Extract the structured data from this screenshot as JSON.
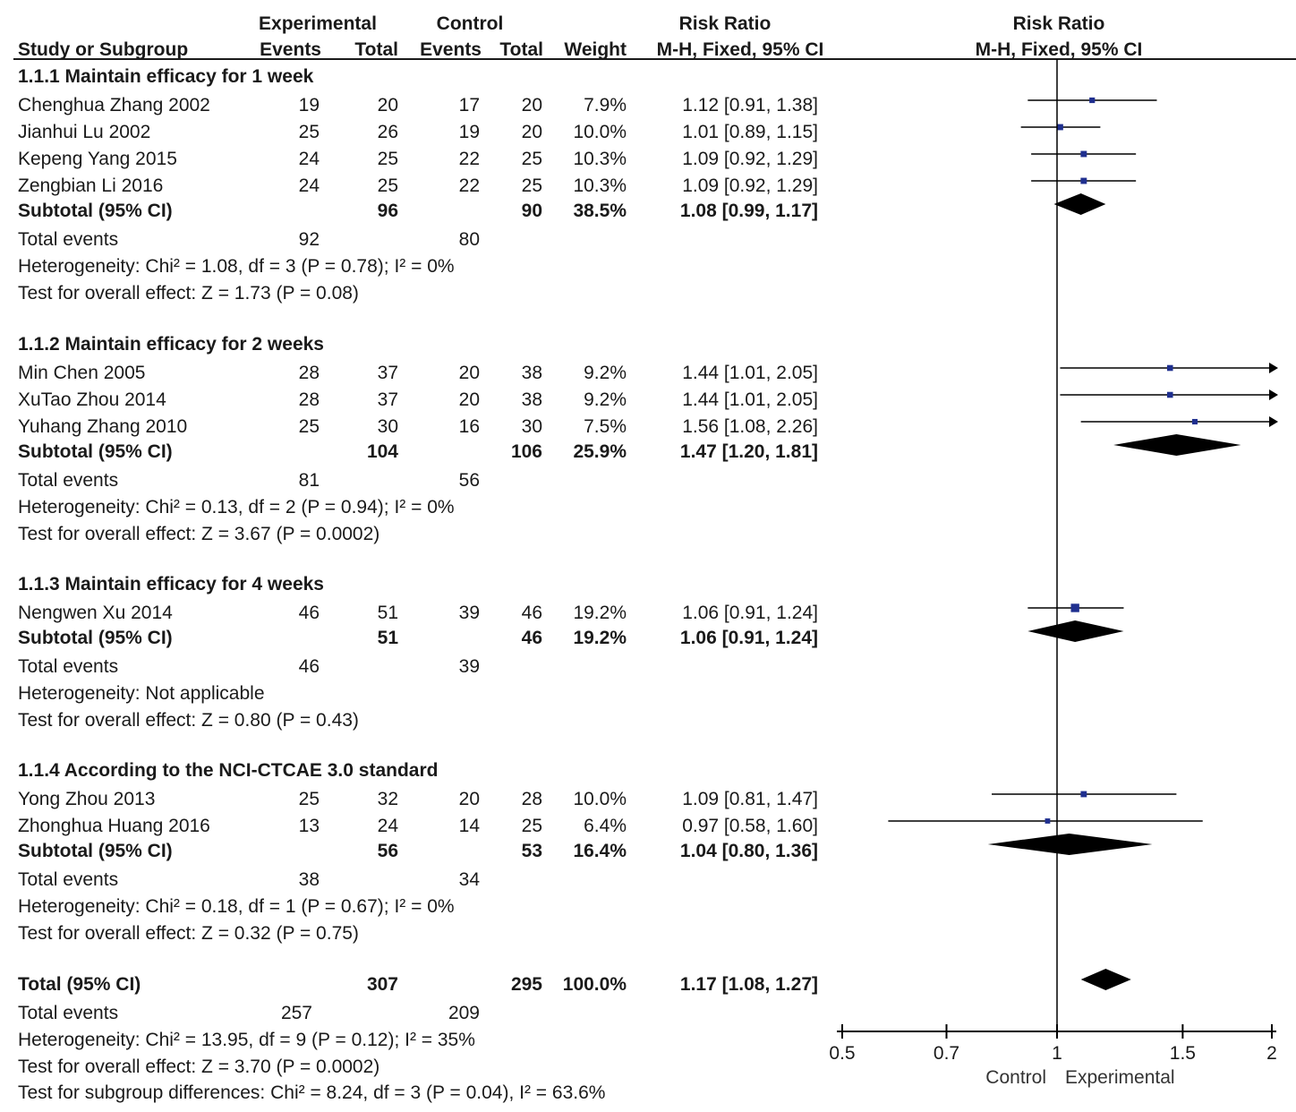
{
  "header": {
    "experimental": "Experimental",
    "control": "Control",
    "risk_ratio": "Risk Ratio",
    "study": "Study or Subgroup",
    "events": "Events",
    "total": "Total",
    "weight": "Weight",
    "method": "M-H, Fixed, 95% CI",
    "plot_title": "Risk Ratio",
    "plot_method": "M-H, Fixed, 95% CI"
  },
  "chart_data": {
    "type": "forest",
    "x_scale": "log",
    "xlim": [
      0.5,
      2
    ],
    "reference_line": 1,
    "ticks": [
      0.5,
      0.7,
      1,
      1.5,
      2
    ],
    "tick_labels": [
      "0.5",
      "0.7",
      "1",
      "1.5",
      "2"
    ],
    "favours_left": "Control",
    "favours_right": "Experimental",
    "colors": {
      "marker": "#1f2f8f",
      "diamond": "#000000",
      "text": "#1a1a1a"
    },
    "groups": [
      {
        "title": "1.1.1 Maintain efficacy for 1 week",
        "studies": [
          {
            "name": "Chenghua Zhang 2002",
            "exp_events": "19",
            "exp_total": "20",
            "ctrl_events": "17",
            "ctrl_total": "20",
            "weight": "7.9%",
            "rr_text": "1.12 [0.91, 1.38]",
            "rr": 1.12,
            "ci": [
              0.91,
              1.38
            ]
          },
          {
            "name": "Jianhui Lu 2002",
            "exp_events": "25",
            "exp_total": "26",
            "ctrl_events": "19",
            "ctrl_total": "20",
            "weight": "10.0%",
            "rr_text": "1.01 [0.89, 1.15]",
            "rr": 1.01,
            "ci": [
              0.89,
              1.15
            ]
          },
          {
            "name": "Kepeng Yang 2015",
            "exp_events": "24",
            "exp_total": "25",
            "ctrl_events": "22",
            "ctrl_total": "25",
            "weight": "10.3%",
            "rr_text": "1.09 [0.92, 1.29]",
            "rr": 1.09,
            "ci": [
              0.92,
              1.29
            ]
          },
          {
            "name": "Zengbian Li 2016",
            "exp_events": "24",
            "exp_total": "25",
            "ctrl_events": "22",
            "ctrl_total": "25",
            "weight": "10.3%",
            "rr_text": "1.09 [0.92, 1.29]",
            "rr": 1.09,
            "ci": [
              0.92,
              1.29
            ]
          }
        ],
        "subtotal": {
          "label": "Subtotal (95% CI)",
          "exp_total": "96",
          "ctrl_total": "90",
          "weight": "38.5%",
          "rr_text": "1.08 [0.99, 1.17]",
          "rr": 1.08,
          "ci": [
            0.99,
            1.17
          ]
        },
        "total_events": {
          "label": "Total events",
          "exp": "92",
          "ctrl": "80"
        },
        "heterogeneity": "Heterogeneity: Chi² = 1.08, df = 3 (P = 0.78); I² = 0%",
        "overall_effect": "Test for overall effect: Z = 1.73 (P = 0.08)"
      },
      {
        "title": "1.1.2 Maintain efficacy for 2 weeks",
        "studies": [
          {
            "name": "Min Chen 2005",
            "exp_events": "28",
            "exp_total": "37",
            "ctrl_events": "20",
            "ctrl_total": "38",
            "weight": "9.2%",
            "rr_text": "1.44 [1.01, 2.05]",
            "rr": 1.44,
            "ci": [
              1.01,
              2.05
            ]
          },
          {
            "name": "XuTao Zhou 2014",
            "exp_events": "28",
            "exp_total": "37",
            "ctrl_events": "20",
            "ctrl_total": "38",
            "weight": "9.2%",
            "rr_text": "1.44 [1.01, 2.05]",
            "rr": 1.44,
            "ci": [
              1.01,
              2.05
            ]
          },
          {
            "name": "Yuhang Zhang 2010",
            "exp_events": "25",
            "exp_total": "30",
            "ctrl_events": "16",
            "ctrl_total": "30",
            "weight": "7.5%",
            "rr_text": "1.56 [1.08, 2.26]",
            "rr": 1.56,
            "ci": [
              1.08,
              2.26
            ]
          }
        ],
        "subtotal": {
          "label": "Subtotal (95% CI)",
          "exp_total": "104",
          "ctrl_total": "106",
          "weight": "25.9%",
          "rr_text": "1.47 [1.20, 1.81]",
          "rr": 1.47,
          "ci": [
            1.2,
            1.81
          ]
        },
        "total_events": {
          "label": "Total events",
          "exp": "81",
          "ctrl": "56"
        },
        "heterogeneity": "Heterogeneity: Chi² = 0.13, df = 2 (P = 0.94); I² = 0%",
        "overall_effect": "Test for overall effect: Z = 3.67 (P = 0.0002)"
      },
      {
        "title": "1.1.3 Maintain efficacy for 4 weeks",
        "studies": [
          {
            "name": "Nengwen Xu 2014",
            "exp_events": "46",
            "exp_total": "51",
            "ctrl_events": "39",
            "ctrl_total": "46",
            "weight": "19.2%",
            "rr_text": "1.06 [0.91, 1.24]",
            "rr": 1.06,
            "ci": [
              0.91,
              1.24
            ]
          }
        ],
        "subtotal": {
          "label": "Subtotal (95% CI)",
          "exp_total": "51",
          "ctrl_total": "46",
          "weight": "19.2%",
          "rr_text": "1.06 [0.91, 1.24]",
          "rr": 1.06,
          "ci": [
            0.91,
            1.24
          ]
        },
        "total_events": {
          "label": "Total events",
          "exp": "46",
          "ctrl": "39"
        },
        "heterogeneity": "Heterogeneity: Not applicable",
        "overall_effect": "Test for overall effect: Z = 0.80 (P = 0.43)"
      },
      {
        "title": "1.1.4 According to the NCI-CTCAE 3.0 standard",
        "studies": [
          {
            "name": "Yong Zhou 2013",
            "exp_events": "25",
            "exp_total": "32",
            "ctrl_events": "20",
            "ctrl_total": "28",
            "weight": "10.0%",
            "rr_text": "1.09 [0.81, 1.47]",
            "rr": 1.09,
            "ci": [
              0.81,
              1.47
            ]
          },
          {
            "name": "Zhonghua Huang 2016",
            "exp_events": "13",
            "exp_total": "24",
            "ctrl_events": "14",
            "ctrl_total": "25",
            "weight": "6.4%",
            "rr_text": "0.97 [0.58, 1.60]",
            "rr": 0.97,
            "ci": [
              0.58,
              1.6
            ]
          }
        ],
        "subtotal": {
          "label": "Subtotal (95% CI)",
          "exp_total": "56",
          "ctrl_total": "53",
          "weight": "16.4%",
          "rr_text": "1.04 [0.80, 1.36]",
          "rr": 1.04,
          "ci": [
            0.8,
            1.36
          ]
        },
        "total_events": {
          "label": "Total events",
          "exp": "38",
          "ctrl": "34"
        },
        "heterogeneity": "Heterogeneity: Chi² = 0.18, df = 1 (P = 0.67); I² = 0%",
        "overall_effect": "Test for overall effect: Z = 0.32 (P = 0.75)"
      }
    ],
    "overall": {
      "label": "Total (95% CI)",
      "exp_total": "307",
      "ctrl_total": "295",
      "weight": "100.0%",
      "rr_text": "1.17 [1.08, 1.27]",
      "rr": 1.17,
      "ci": [
        1.08,
        1.27
      ],
      "total_events": {
        "label": "Total events",
        "exp": "257",
        "ctrl": "209"
      },
      "heterogeneity": "Heterogeneity: Chi² = 13.95, df = 9 (P = 0.12); I² = 35%",
      "overall_effect": "Test for overall effect: Z = 3.70 (P = 0.0002)",
      "subgroup_differences": "Test for subgroup differences: Chi² = 8.24, df = 3 (P = 0.04), I² = 63.6%"
    }
  }
}
